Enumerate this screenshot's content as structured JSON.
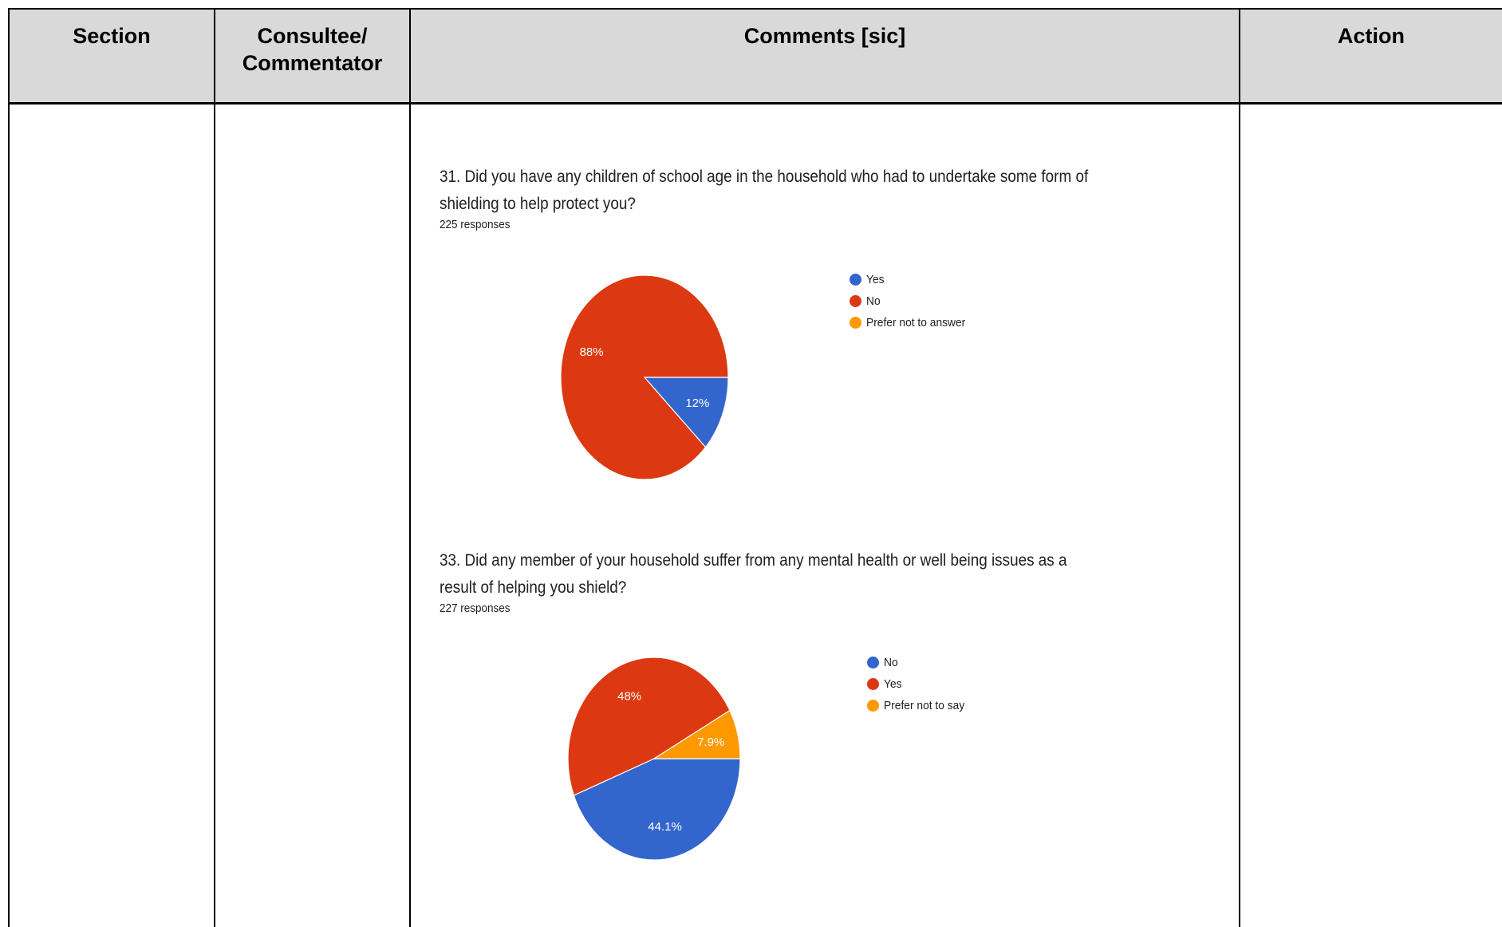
{
  "table": {
    "headers": {
      "section": "Section",
      "consultee": "Consultee/\nCommentator",
      "comments": "Comments [sic]",
      "action": "Action"
    }
  },
  "chart_data": [
    {
      "type": "pie",
      "title": "31. Did you have any children of school age in the household who had to undertake some form of\nshielding to help protect you?",
      "subtitle": "225 responses",
      "categories": [
        "Yes",
        "No",
        "Prefer not to answer"
      ],
      "values": [
        12,
        88,
        0
      ],
      "labels": [
        "12%",
        "88%",
        ""
      ],
      "colors": [
        "#3366cc",
        "#dc3912",
        "#ff9900"
      ],
      "legend": "right"
    },
    {
      "type": "pie",
      "title": "33. Did any member of your household suffer from any mental health or well being issues as a\nresult of helping you shield?",
      "subtitle": "227 responses",
      "categories": [
        "No",
        "Yes",
        "Prefer not to say"
      ],
      "values": [
        44.1,
        48,
        7.9
      ],
      "labels": [
        "44.1%",
        "48%",
        "7.9%"
      ],
      "colors": [
        "#3366cc",
        "#dc3912",
        "#ff9900"
      ],
      "legend": "right"
    }
  ]
}
